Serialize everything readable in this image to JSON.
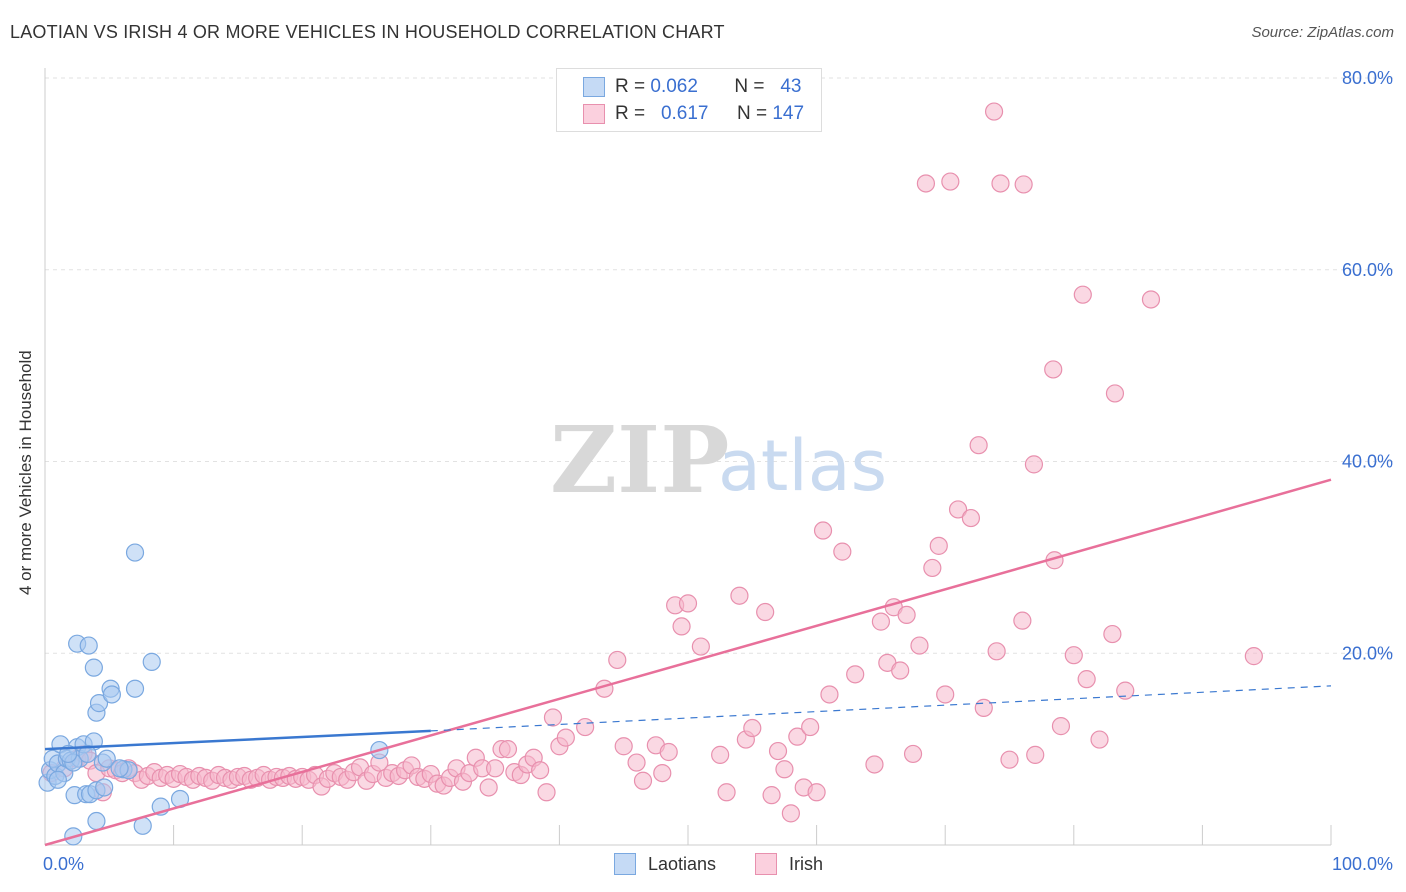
{
  "header": {
    "title": "LAOTIAN VS IRISH 4 OR MORE VEHICLES IN HOUSEHOLD CORRELATION CHART",
    "source": "Source: ZipAtlas.com"
  },
  "watermark": {
    "zip": "ZIP",
    "atlas": "atlas"
  },
  "legend": {
    "rows": [
      {
        "r_label": "R =",
        "r_value": "0.062",
        "n_label": "N =",
        "n_value": "43",
        "color": "#a8c8f0"
      },
      {
        "r_label": "R =",
        "r_value": "0.617",
        "n_label": "N =",
        "n_value": "147",
        "color": "#f5b8cc"
      }
    ]
  },
  "bottom_legend": [
    {
      "label": "Laotians",
      "color": "#a8c8f0"
    },
    {
      "label": "Irish",
      "color": "#f5b8cc"
    }
  ],
  "chart_data": {
    "type": "scatter",
    "title": "LAOTIAN VS IRISH 4 OR MORE VEHICLES IN HOUSEHOLD CORRELATION CHART",
    "xlabel": "",
    "ylabel": "4 or more Vehicles in Household",
    "xlim": [
      0,
      100
    ],
    "ylim": [
      0,
      80
    ],
    "x_tick_labels": [
      {
        "value": 0,
        "label": "0.0%"
      },
      {
        "value": 100,
        "label": "100.0%"
      }
    ],
    "y_tick_labels": [
      {
        "value": 20,
        "label": "20.0%"
      },
      {
        "value": 40,
        "label": "40.0%"
      },
      {
        "value": 60,
        "label": "60.0%"
      },
      {
        "value": 80,
        "label": "80.0%"
      }
    ],
    "grid": true,
    "legend_position": "top-center",
    "series": [
      {
        "name": "Laotians",
        "color": "#a8c8f0",
        "stroke": "#7aa8e0",
        "line_color": "#3a78d0",
        "trend": {
          "x0": 0,
          "y0": 10.0,
          "x1": 30,
          "y1": 11.9,
          "dash_to_x": 100,
          "dash_y1": 16.6
        },
        "points": [
          [
            0.2,
            6.5
          ],
          [
            0.4,
            7.8
          ],
          [
            0.6,
            9.0
          ],
          [
            0.8,
            7.2
          ],
          [
            1.0,
            8.5
          ],
          [
            1.2,
            10.5
          ],
          [
            1.5,
            7.5
          ],
          [
            1.7,
            9.0
          ],
          [
            2.0,
            8.8
          ],
          [
            2.3,
            5.2
          ],
          [
            2.5,
            10.2
          ],
          [
            2.7,
            9.0
          ],
          [
            3.0,
            10.5
          ],
          [
            3.2,
            5.3
          ],
          [
            3.5,
            5.3
          ],
          [
            3.8,
            10.8
          ],
          [
            4.0,
            5.7
          ],
          [
            2.5,
            21.0
          ],
          [
            3.4,
            20.8
          ],
          [
            3.8,
            18.5
          ],
          [
            4.0,
            13.8
          ],
          [
            4.2,
            14.8
          ],
          [
            5.1,
            16.3
          ],
          [
            5.2,
            15.7
          ],
          [
            4.5,
            8.6
          ],
          [
            4.6,
            6.0
          ],
          [
            4.8,
            9.0
          ],
          [
            6.1,
            7.9
          ],
          [
            7.0,
            16.3
          ],
          [
            7.0,
            30.5
          ],
          [
            8.3,
            19.1
          ],
          [
            7.6,
            2.0
          ],
          [
            9.0,
            4.0
          ],
          [
            10.5,
            4.8
          ],
          [
            4.0,
            2.5
          ],
          [
            2.2,
            0.9
          ],
          [
            26.0,
            9.9
          ],
          [
            2.2,
            8.6
          ],
          [
            6.5,
            7.8
          ],
          [
            1.0,
            6.8
          ],
          [
            3.3,
            9.5
          ],
          [
            5.8,
            8.0
          ],
          [
            1.8,
            9.5
          ]
        ]
      },
      {
        "name": "Irish",
        "color": "#f5b8cc",
        "stroke": "#e890ae",
        "line_color": "#e8709a",
        "trend": {
          "x0": 0,
          "y0": 0.0,
          "x1": 100,
          "y1": 38.1
        },
        "points": [
          [
            0.5,
            7.5
          ],
          [
            1.5,
            8.0
          ],
          [
            2.5,
            9.0
          ],
          [
            3.0,
            9.5
          ],
          [
            3.5,
            8.8
          ],
          [
            4.0,
            7.5
          ],
          [
            4.5,
            5.5
          ],
          [
            5.0,
            8.0
          ],
          [
            5.5,
            7.8
          ],
          [
            6.0,
            7.5
          ],
          [
            6.5,
            8.0
          ],
          [
            7.0,
            7.5
          ],
          [
            7.5,
            6.8
          ],
          [
            8.0,
            7.2
          ],
          [
            8.5,
            7.6
          ],
          [
            9.0,
            7.0
          ],
          [
            9.5,
            7.3
          ],
          [
            10.0,
            6.9
          ],
          [
            10.5,
            7.4
          ],
          [
            11.0,
            7.1
          ],
          [
            11.5,
            6.8
          ],
          [
            12.0,
            7.2
          ],
          [
            12.5,
            7.0
          ],
          [
            13.0,
            6.7
          ],
          [
            13.5,
            7.3
          ],
          [
            14.0,
            7.0
          ],
          [
            14.5,
            6.8
          ],
          [
            15.0,
            7.1
          ],
          [
            15.5,
            7.2
          ],
          [
            16.0,
            6.8
          ],
          [
            16.5,
            7.0
          ],
          [
            17.0,
            7.3
          ],
          [
            17.5,
            6.8
          ],
          [
            18.0,
            7.1
          ],
          [
            18.5,
            7.0
          ],
          [
            19.0,
            7.2
          ],
          [
            19.5,
            6.9
          ],
          [
            20.0,
            7.1
          ],
          [
            20.5,
            6.8
          ],
          [
            21.0,
            7.3
          ],
          [
            21.5,
            6.1
          ],
          [
            22.0,
            6.9
          ],
          [
            22.5,
            7.5
          ],
          [
            23.0,
            7.1
          ],
          [
            23.5,
            6.8
          ],
          [
            24.0,
            7.6
          ],
          [
            24.5,
            8.1
          ],
          [
            25.0,
            6.7
          ],
          [
            25.5,
            7.4
          ],
          [
            26.0,
            8.6
          ],
          [
            26.5,
            7.0
          ],
          [
            27.0,
            7.5
          ],
          [
            27.5,
            7.2
          ],
          [
            28.0,
            7.8
          ],
          [
            28.5,
            8.3
          ],
          [
            29.0,
            7.1
          ],
          [
            29.5,
            6.9
          ],
          [
            30.0,
            7.4
          ],
          [
            30.5,
            6.4
          ],
          [
            31.0,
            6.2
          ],
          [
            31.5,
            7.0
          ],
          [
            32.0,
            8.0
          ],
          [
            32.5,
            6.6
          ],
          [
            33.0,
            7.5
          ],
          [
            33.5,
            9.1
          ],
          [
            34.0,
            8.0
          ],
          [
            34.5,
            6.0
          ],
          [
            35.0,
            8.0
          ],
          [
            35.5,
            10.0
          ],
          [
            36.0,
            10.0
          ],
          [
            36.5,
            7.6
          ],
          [
            37.0,
            7.3
          ],
          [
            37.5,
            8.4
          ],
          [
            38.0,
            9.1
          ],
          [
            38.5,
            7.8
          ],
          [
            39.0,
            5.5
          ],
          [
            39.5,
            13.3
          ],
          [
            40.0,
            10.3
          ],
          [
            40.5,
            11.2
          ],
          [
            42.0,
            12.3
          ],
          [
            43.5,
            16.3
          ],
          [
            44.5,
            19.3
          ],
          [
            45.0,
            10.3
          ],
          [
            46.0,
            8.6
          ],
          [
            46.5,
            6.7
          ],
          [
            47.5,
            10.4
          ],
          [
            48.0,
            7.5
          ],
          [
            48.5,
            9.7
          ],
          [
            49.0,
            25.0
          ],
          [
            49.5,
            22.8
          ],
          [
            50.0,
            25.2
          ],
          [
            51.0,
            20.7
          ],
          [
            52.5,
            9.4
          ],
          [
            53.0,
            5.5
          ],
          [
            54.0,
            26.0
          ],
          [
            54.5,
            11.0
          ],
          [
            55.0,
            12.2
          ],
          [
            56.0,
            24.3
          ],
          [
            56.5,
            5.2
          ],
          [
            57.0,
            9.8
          ],
          [
            57.5,
            7.9
          ],
          [
            58.0,
            3.3
          ],
          [
            58.5,
            11.3
          ],
          [
            59.0,
            6.0
          ],
          [
            59.5,
            12.3
          ],
          [
            60.0,
            5.5
          ],
          [
            60.5,
            32.8
          ],
          [
            61.0,
            15.7
          ],
          [
            62.0,
            30.6
          ],
          [
            63.0,
            17.8
          ],
          [
            64.5,
            8.4
          ],
          [
            65.0,
            23.3
          ],
          [
            65.5,
            19.0
          ],
          [
            66.0,
            24.8
          ],
          [
            66.5,
            18.2
          ],
          [
            67.0,
            24.0
          ],
          [
            67.5,
            9.5
          ],
          [
            68.0,
            20.8
          ],
          [
            69.0,
            28.9
          ],
          [
            69.5,
            31.2
          ],
          [
            70.0,
            15.7
          ],
          [
            71.0,
            35.0
          ],
          [
            72.0,
            34.1
          ],
          [
            73.0,
            14.3
          ],
          [
            74.0,
            20.2
          ],
          [
            75.0,
            8.9
          ],
          [
            76.0,
            23.4
          ],
          [
            77.0,
            9.4
          ],
          [
            78.5,
            29.7
          ],
          [
            79.0,
            12.4
          ],
          [
            80.0,
            19.8
          ],
          [
            81.0,
            17.3
          ],
          [
            82.0,
            11.0
          ],
          [
            83.0,
            22.0
          ],
          [
            84.0,
            16.1
          ],
          [
            94.0,
            19.7
          ],
          [
            72.6,
            41.7
          ],
          [
            76.9,
            39.7
          ],
          [
            78.4,
            49.6
          ],
          [
            80.7,
            57.4
          ],
          [
            83.2,
            47.1
          ],
          [
            86.0,
            56.9
          ],
          [
            76.1,
            68.9
          ],
          [
            68.5,
            69.0
          ],
          [
            70.4,
            69.2
          ],
          [
            73.8,
            76.5
          ],
          [
            74.3,
            69.0
          ]
        ]
      }
    ]
  }
}
